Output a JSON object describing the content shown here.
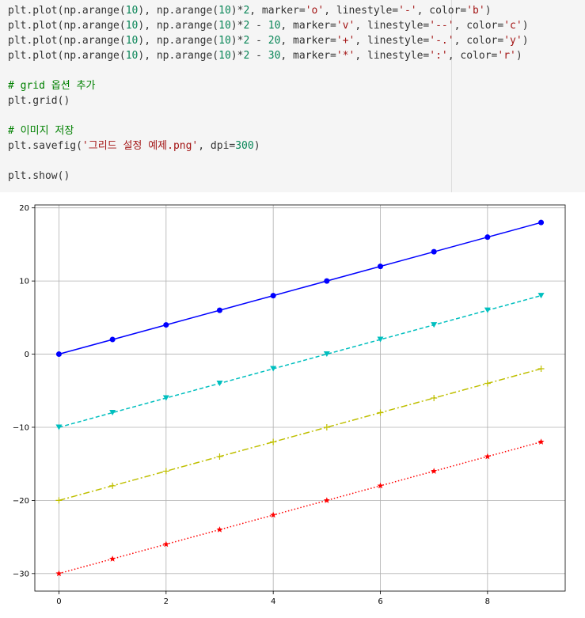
{
  "code": {
    "lines": [
      [
        {
          "t": "text",
          "s": "plt.plot(np.arange("
        },
        {
          "t": "num",
          "s": "10"
        },
        {
          "t": "text",
          "s": "), np.arange("
        },
        {
          "t": "num",
          "s": "10"
        },
        {
          "t": "text",
          "s": ")*"
        },
        {
          "t": "num",
          "s": "2"
        },
        {
          "t": "text",
          "s": ", marker="
        },
        {
          "t": "str",
          "s": "'o'"
        },
        {
          "t": "text",
          "s": ", linestyle="
        },
        {
          "t": "str",
          "s": "'-'"
        },
        {
          "t": "text",
          "s": ", color="
        },
        {
          "t": "str",
          "s": "'b'"
        },
        {
          "t": "text",
          "s": ")"
        }
      ],
      [
        {
          "t": "text",
          "s": "plt.plot(np.arange("
        },
        {
          "t": "num",
          "s": "10"
        },
        {
          "t": "text",
          "s": "), np.arange("
        },
        {
          "t": "num",
          "s": "10"
        },
        {
          "t": "text",
          "s": ")*"
        },
        {
          "t": "num",
          "s": "2"
        },
        {
          "t": "text",
          "s": " - "
        },
        {
          "t": "num",
          "s": "10"
        },
        {
          "t": "text",
          "s": ", marker="
        },
        {
          "t": "str",
          "s": "'v'"
        },
        {
          "t": "text",
          "s": ", linestyle="
        },
        {
          "t": "str",
          "s": "'--'"
        },
        {
          "t": "text",
          "s": ", color="
        },
        {
          "t": "str",
          "s": "'c'"
        },
        {
          "t": "text",
          "s": ")"
        }
      ],
      [
        {
          "t": "text",
          "s": "plt.plot(np.arange("
        },
        {
          "t": "num",
          "s": "10"
        },
        {
          "t": "text",
          "s": "), np.arange("
        },
        {
          "t": "num",
          "s": "10"
        },
        {
          "t": "text",
          "s": ")*"
        },
        {
          "t": "num",
          "s": "2"
        },
        {
          "t": "text",
          "s": " - "
        },
        {
          "t": "num",
          "s": "20"
        },
        {
          "t": "text",
          "s": ", marker="
        },
        {
          "t": "str",
          "s": "'+'"
        },
        {
          "t": "text",
          "s": ", linestyle="
        },
        {
          "t": "str",
          "s": "'-.'"
        },
        {
          "t": "text",
          "s": ", color="
        },
        {
          "t": "str",
          "s": "'y'"
        },
        {
          "t": "text",
          "s": ")"
        }
      ],
      [
        {
          "t": "text",
          "s": "plt.plot(np.arange("
        },
        {
          "t": "num",
          "s": "10"
        },
        {
          "t": "text",
          "s": "), np.arange("
        },
        {
          "t": "num",
          "s": "10"
        },
        {
          "t": "text",
          "s": ")*"
        },
        {
          "t": "num",
          "s": "2"
        },
        {
          "t": "text",
          "s": " - "
        },
        {
          "t": "num",
          "s": "30"
        },
        {
          "t": "text",
          "s": ", marker="
        },
        {
          "t": "str",
          "s": "'*'"
        },
        {
          "t": "text",
          "s": ", linestyle="
        },
        {
          "t": "str",
          "s": "':'"
        },
        {
          "t": "text",
          "s": ", color="
        },
        {
          "t": "str",
          "s": "'r'"
        },
        {
          "t": "text",
          "s": ")"
        }
      ],
      [],
      [
        {
          "t": "com",
          "s": "# grid 옵션 추가"
        }
      ],
      [
        {
          "t": "text",
          "s": "plt.grid()"
        }
      ],
      [],
      [
        {
          "t": "com",
          "s": "# 이미지 저장"
        }
      ],
      [
        {
          "t": "text",
          "s": "plt.savefig("
        },
        {
          "t": "str",
          "s": "'그리드 설정 예제.png'"
        },
        {
          "t": "text",
          "s": ", dpi="
        },
        {
          "t": "num",
          "s": "300"
        },
        {
          "t": "text",
          "s": ")"
        }
      ],
      [],
      [
        {
          "t": "text",
          "s": "plt.show()"
        }
      ]
    ]
  },
  "chart_data": {
    "type": "line",
    "x": [
      0,
      1,
      2,
      3,
      4,
      5,
      6,
      7,
      8,
      9
    ],
    "xticks": [
      "0",
      "2",
      "4",
      "6",
      "8"
    ],
    "yticks": [
      "20",
      "10",
      "0",
      "−10",
      "−20",
      "−30"
    ],
    "xlim": [
      -0.45,
      9.45
    ],
    "ylim": [
      -32.4,
      20.4
    ],
    "grid": true,
    "series": [
      {
        "values": [
          0,
          2,
          4,
          6,
          8,
          10,
          12,
          14,
          16,
          18
        ],
        "marker": "o",
        "linestyle": "-",
        "color": "#0000ff"
      },
      {
        "values": [
          -10,
          -8,
          -6,
          -4,
          -2,
          0,
          2,
          4,
          6,
          8
        ],
        "marker": "v",
        "linestyle": "--",
        "color": "#00bfbf"
      },
      {
        "values": [
          -20,
          -18,
          -16,
          -14,
          -12,
          -10,
          -8,
          -6,
          -4,
          -2
        ],
        "marker": "+",
        "linestyle": "-.",
        "color": "#bfbf00"
      },
      {
        "values": [
          -30,
          -28,
          -26,
          -24,
          -22,
          -20,
          -18,
          -16,
          -14,
          -12
        ],
        "marker": "*",
        "linestyle": ":",
        "color": "#ff0000"
      }
    ]
  }
}
